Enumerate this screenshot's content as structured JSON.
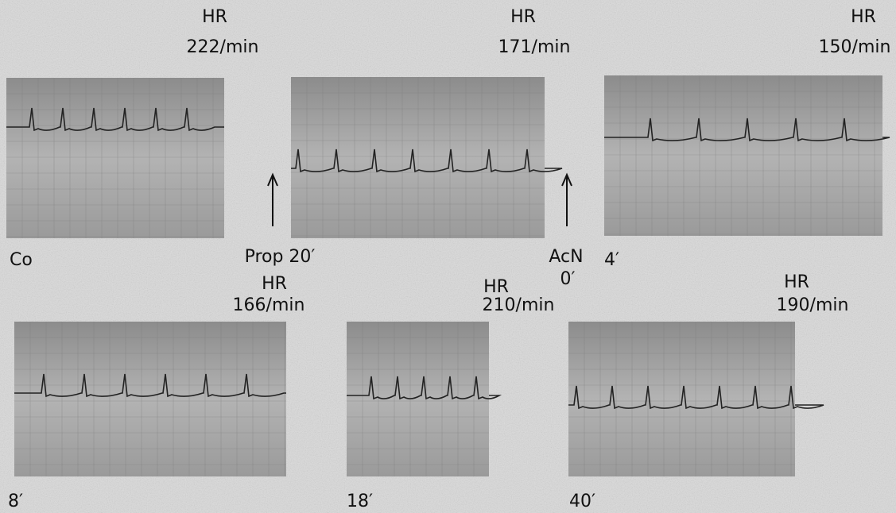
{
  "panels": [
    {
      "hr_label": "HR",
      "hr": "222/min",
      "caption": "Co"
    },
    {
      "hr_label": "HR",
      "hr": "171/min"
    },
    {
      "hr_label": "HR",
      "hr": "150/min",
      "caption": "4′"
    },
    {
      "hr_label": "HR",
      "hr": "166/min",
      "caption": "8′"
    },
    {
      "hr_label": "HR",
      "hr": "210/min",
      "caption": "18′"
    },
    {
      "hr_label": "HR",
      "hr": "190/min",
      "caption": "40′"
    }
  ],
  "arrows": [
    {
      "label": "Prop 20′"
    },
    {
      "label": "AcN",
      "time": "0′"
    }
  ]
}
